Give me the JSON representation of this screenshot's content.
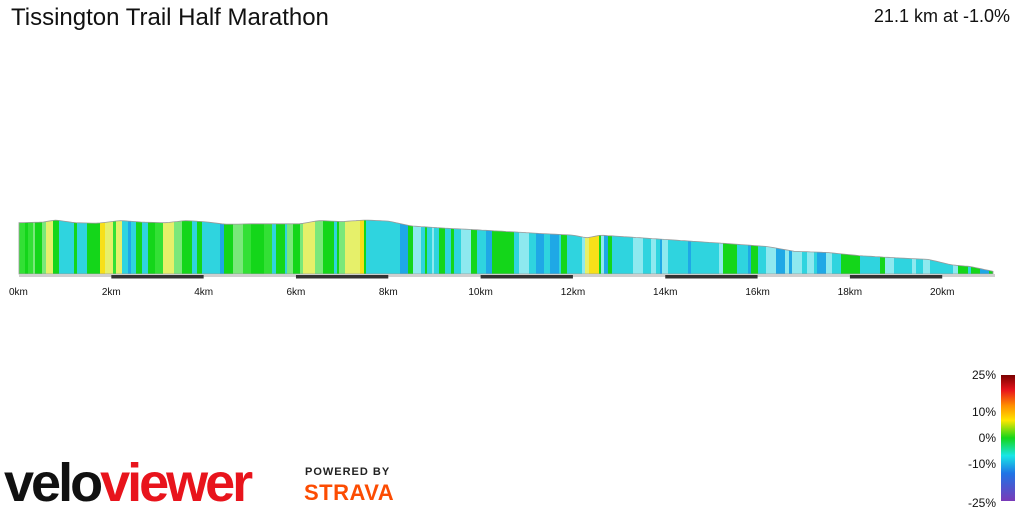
{
  "header": {
    "title": "Tissington Trail Half Marathon",
    "summary": "21.1 km at -1.0%"
  },
  "chart_data": {
    "type": "area",
    "title": "Tissington Trail Half Marathon",
    "xlabel": "",
    "ylabel": "",
    "x_unit": "km",
    "xlim": [
      0,
      21.1
    ],
    "x_ticks": [
      0,
      2,
      4,
      6,
      8,
      10,
      12,
      14,
      16,
      18,
      20
    ],
    "x_tick_labels": [
      "0km",
      "2km",
      "4km",
      "6km",
      "8km",
      "10km",
      "12km",
      "14km",
      "16km",
      "18km",
      "20km"
    ],
    "elevation_profile_relative": [
      {
        "x": 0.0,
        "h": 0.95
      },
      {
        "x": 0.5,
        "h": 0.96
      },
      {
        "x": 0.8,
        "h": 1.0
      },
      {
        "x": 1.2,
        "h": 0.95
      },
      {
        "x": 1.7,
        "h": 0.94
      },
      {
        "x": 2.2,
        "h": 0.99
      },
      {
        "x": 2.7,
        "h": 0.96
      },
      {
        "x": 3.2,
        "h": 0.95
      },
      {
        "x": 3.6,
        "h": 0.99
      },
      {
        "x": 4.0,
        "h": 0.97
      },
      {
        "x": 4.5,
        "h": 0.92
      },
      {
        "x": 5.0,
        "h": 0.93
      },
      {
        "x": 5.6,
        "h": 0.93
      },
      {
        "x": 6.1,
        "h": 0.93
      },
      {
        "x": 6.5,
        "h": 0.99
      },
      {
        "x": 7.0,
        "h": 0.97
      },
      {
        "x": 7.5,
        "h": 1.0
      },
      {
        "x": 8.0,
        "h": 0.98
      },
      {
        "x": 8.5,
        "h": 0.89
      },
      {
        "x": 9.2,
        "h": 0.85
      },
      {
        "x": 9.9,
        "h": 0.82
      },
      {
        "x": 10.5,
        "h": 0.79
      },
      {
        "x": 11.3,
        "h": 0.75
      },
      {
        "x": 12.0,
        "h": 0.72
      },
      {
        "x": 12.3,
        "h": 0.67
      },
      {
        "x": 12.6,
        "h": 0.72
      },
      {
        "x": 13.3,
        "h": 0.68
      },
      {
        "x": 14.0,
        "h": 0.64
      },
      {
        "x": 14.7,
        "h": 0.6
      },
      {
        "x": 15.4,
        "h": 0.56
      },
      {
        "x": 16.2,
        "h": 0.51
      },
      {
        "x": 16.8,
        "h": 0.42
      },
      {
        "x": 17.5,
        "h": 0.4
      },
      {
        "x": 18.2,
        "h": 0.34
      },
      {
        "x": 19.0,
        "h": 0.3
      },
      {
        "x": 19.7,
        "h": 0.27
      },
      {
        "x": 20.2,
        "h": 0.17
      },
      {
        "x": 20.6,
        "h": 0.14
      },
      {
        "x": 21.1,
        "h": 0.05
      }
    ],
    "legend": {
      "type": "color-scale",
      "labels": [
        "25%",
        "10%",
        "0%",
        "-10%",
        "-25%"
      ],
      "placement": "bottom-right"
    }
  },
  "colors": {
    "grade_colors": [
      "#14d61a",
      "#33e035",
      "#7ae87a",
      "#e6f06a",
      "#f7e019",
      "#2fd4df",
      "#8ee9ef",
      "#1fa8e6"
    ],
    "baseline": "#cccccc",
    "km_bar": "#333333",
    "strava_orange": "#fc4c02"
  },
  "logo": {
    "brand_part1": "velo",
    "brand_part2": "viewer",
    "powered_by": "POWERED BY",
    "strava": "STRAVA"
  }
}
